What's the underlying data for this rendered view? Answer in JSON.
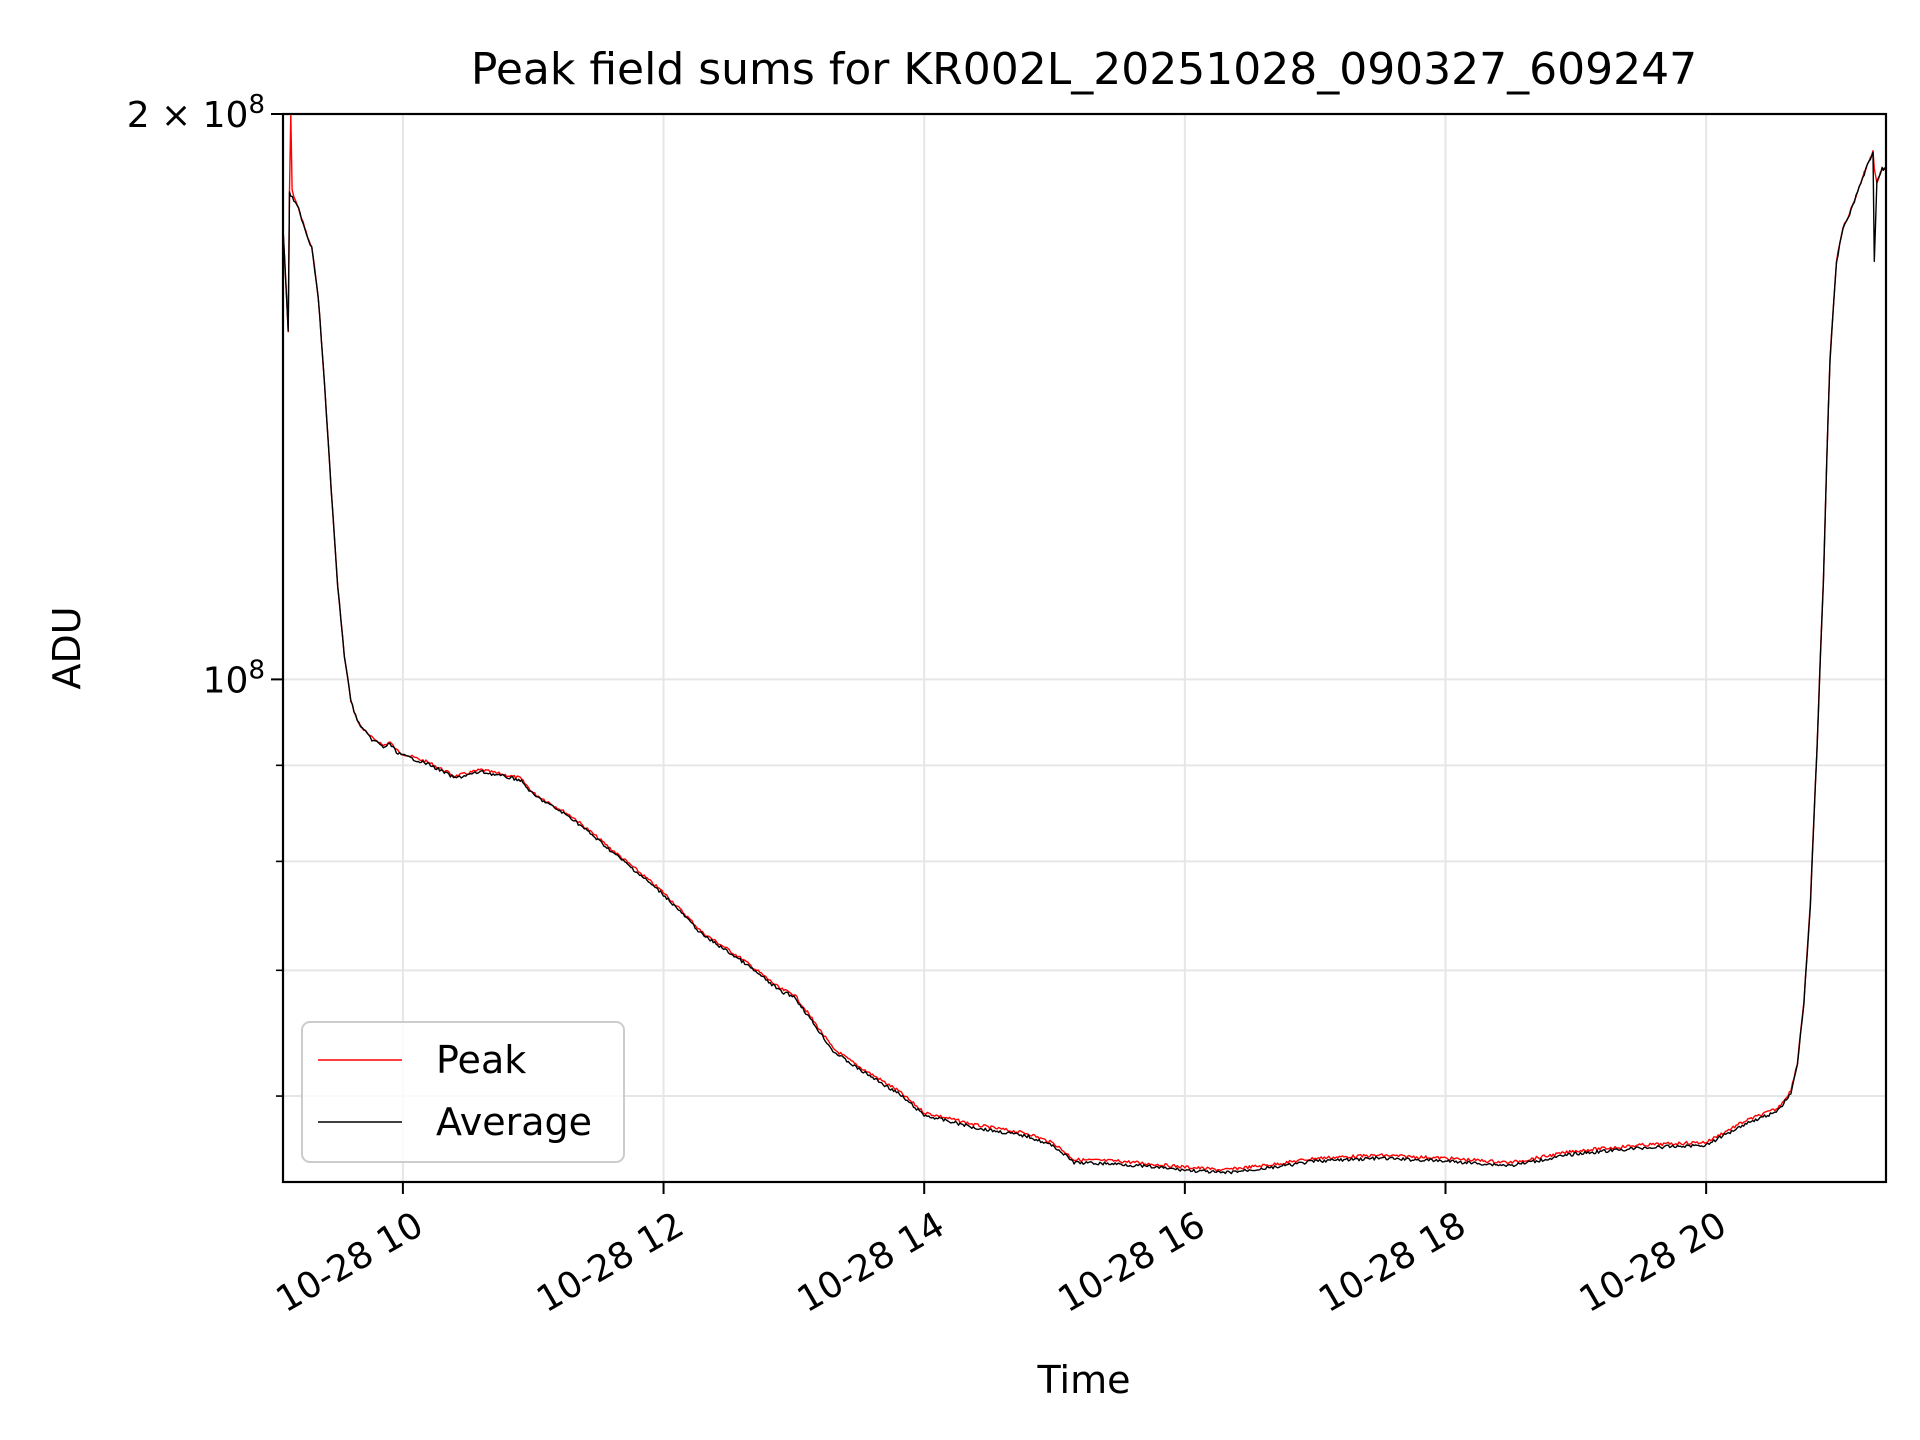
{
  "chart_data": {
    "type": "line",
    "title": "Peak field sums for KR002L_20251028_090327_609247",
    "xlabel": "Time",
    "ylabel": "ADU",
    "xlim": [
      9.08,
      21.38
    ],
    "ylim": [
      54000000,
      200000000
    ],
    "yscale": "log",
    "grid": true,
    "legend_position": "lower-left",
    "x_ticks": [
      {
        "value": 10,
        "label": "10-28 10"
      },
      {
        "value": 12,
        "label": "10-28 12"
      },
      {
        "value": 14,
        "label": "10-28 14"
      },
      {
        "value": 16,
        "label": "10-28 16"
      },
      {
        "value": 18,
        "label": "10-28 18"
      },
      {
        "value": 20,
        "label": "10-28 20"
      }
    ],
    "y_ticks": [
      {
        "value": 200000000,
        "base": "2 × 10",
        "exp": "8"
      },
      {
        "value": 100000000,
        "base": "10",
        "exp": "8"
      }
    ],
    "y_minor_ticks": [
      60000000,
      70000000,
      80000000,
      90000000
    ],
    "series": [
      {
        "name": "Peak",
        "color": "#ff0000",
        "x": [
          9.08,
          9.12,
          9.13,
          9.14,
          9.15,
          9.2,
          9.28,
          9.3,
          9.35,
          9.4,
          9.45,
          9.5,
          9.55,
          9.6,
          9.65,
          9.7,
          9.75,
          9.8,
          9.85,
          9.9,
          9.95,
          10.0,
          10.2,
          10.4,
          10.6,
          10.9,
          11.0,
          11.3,
          11.6,
          12.0,
          12.3,
          12.6,
          12.9,
          13.0,
          13.3,
          13.5,
          13.8,
          14.0,
          14.4,
          14.8,
          15.0,
          15.15,
          15.5,
          16.0,
          16.3,
          16.7,
          17.0,
          17.5,
          18.0,
          18.5,
          19.0,
          19.5,
          20.0,
          20.3,
          20.55,
          20.65,
          20.7,
          20.75,
          20.8,
          20.85,
          20.9,
          20.95,
          21.0,
          21.05,
          21.1,
          21.15,
          21.2,
          21.25,
          21.28,
          21.29,
          21.31,
          21.35,
          21.38
        ],
        "y": [
          174000000,
          153000000,
          182000000,
          200000000,
          182000000,
          178000000,
          171000000,
          170000000,
          160000000,
          143000000,
          126000000,
          112000000,
          103000000,
          97500000,
          95000000,
          94000000,
          93200000,
          92800000,
          92200000,
          92600000,
          91700000,
          91300000,
          90300000,
          88800000,
          89500000,
          88600000,
          87000000,
          84500000,
          81200000,
          77000000,
          73300000,
          71000000,
          68400000,
          68000000,
          63600000,
          62200000,
          60400000,
          58800000,
          57900000,
          57300000,
          56600000,
          55500000,
          55400000,
          55000000,
          54800000,
          55200000,
          55600000,
          55800000,
          55600000,
          55300000,
          56100000,
          56500000,
          56700000,
          58200000,
          59100000,
          60400000,
          62500000,
          67400000,
          76000000,
          91600000,
          113000000,
          148000000,
          167000000,
          174000000,
          177000000,
          181000000,
          185000000,
          189000000,
          191000000,
          187000000,
          184000000,
          187000000,
          187000000
        ]
      },
      {
        "name": "Average",
        "color": "#000000",
        "x": [
          9.08,
          9.12,
          9.13,
          9.14,
          9.2,
          9.28,
          9.3,
          9.35,
          9.4,
          9.45,
          9.5,
          9.55,
          9.6,
          9.65,
          9.7,
          9.75,
          9.8,
          9.85,
          9.9,
          9.95,
          10.0,
          10.2,
          10.4,
          10.6,
          10.9,
          11.0,
          11.3,
          11.6,
          12.0,
          12.3,
          12.6,
          12.9,
          13.0,
          13.3,
          13.5,
          13.8,
          14.0,
          14.4,
          14.8,
          15.0,
          15.15,
          15.5,
          16.0,
          16.3,
          16.7,
          17.0,
          17.5,
          18.0,
          18.5,
          19.0,
          19.5,
          20.0,
          20.3,
          20.55,
          20.65,
          20.7,
          20.75,
          20.8,
          20.85,
          20.9,
          20.95,
          21.0,
          21.05,
          21.1,
          21.15,
          21.2,
          21.25,
          21.28,
          21.29,
          21.31,
          21.35,
          21.38
        ],
        "y": [
          174000000,
          153000000,
          182000000,
          181000000,
          178000000,
          171000000,
          170000000,
          160000000,
          143000000,
          126000000,
          112000000,
          103000000,
          97500000,
          95000000,
          94000000,
          93000000,
          92600000,
          92000000,
          92400000,
          91500000,
          91100000,
          90100000,
          88600000,
          89300000,
          88400000,
          86800000,
          84300000,
          81000000,
          76800000,
          73100000,
          70800000,
          68200000,
          67800000,
          63400000,
          62000000,
          60200000,
          58600000,
          57700000,
          57100000,
          56400000,
          55300000,
          55200000,
          54800000,
          54600000,
          55000000,
          55400000,
          55600000,
          55400000,
          55100000,
          55900000,
          56300000,
          56500000,
          58000000,
          58900000,
          60200000,
          62300000,
          67200000,
          75800000,
          91400000,
          112800000,
          147800000,
          166800000,
          173800000,
          176800000,
          180800000,
          184800000,
          188800000,
          190800000,
          167000000,
          184000000,
          187000000,
          187000000
        ]
      }
    ]
  }
}
